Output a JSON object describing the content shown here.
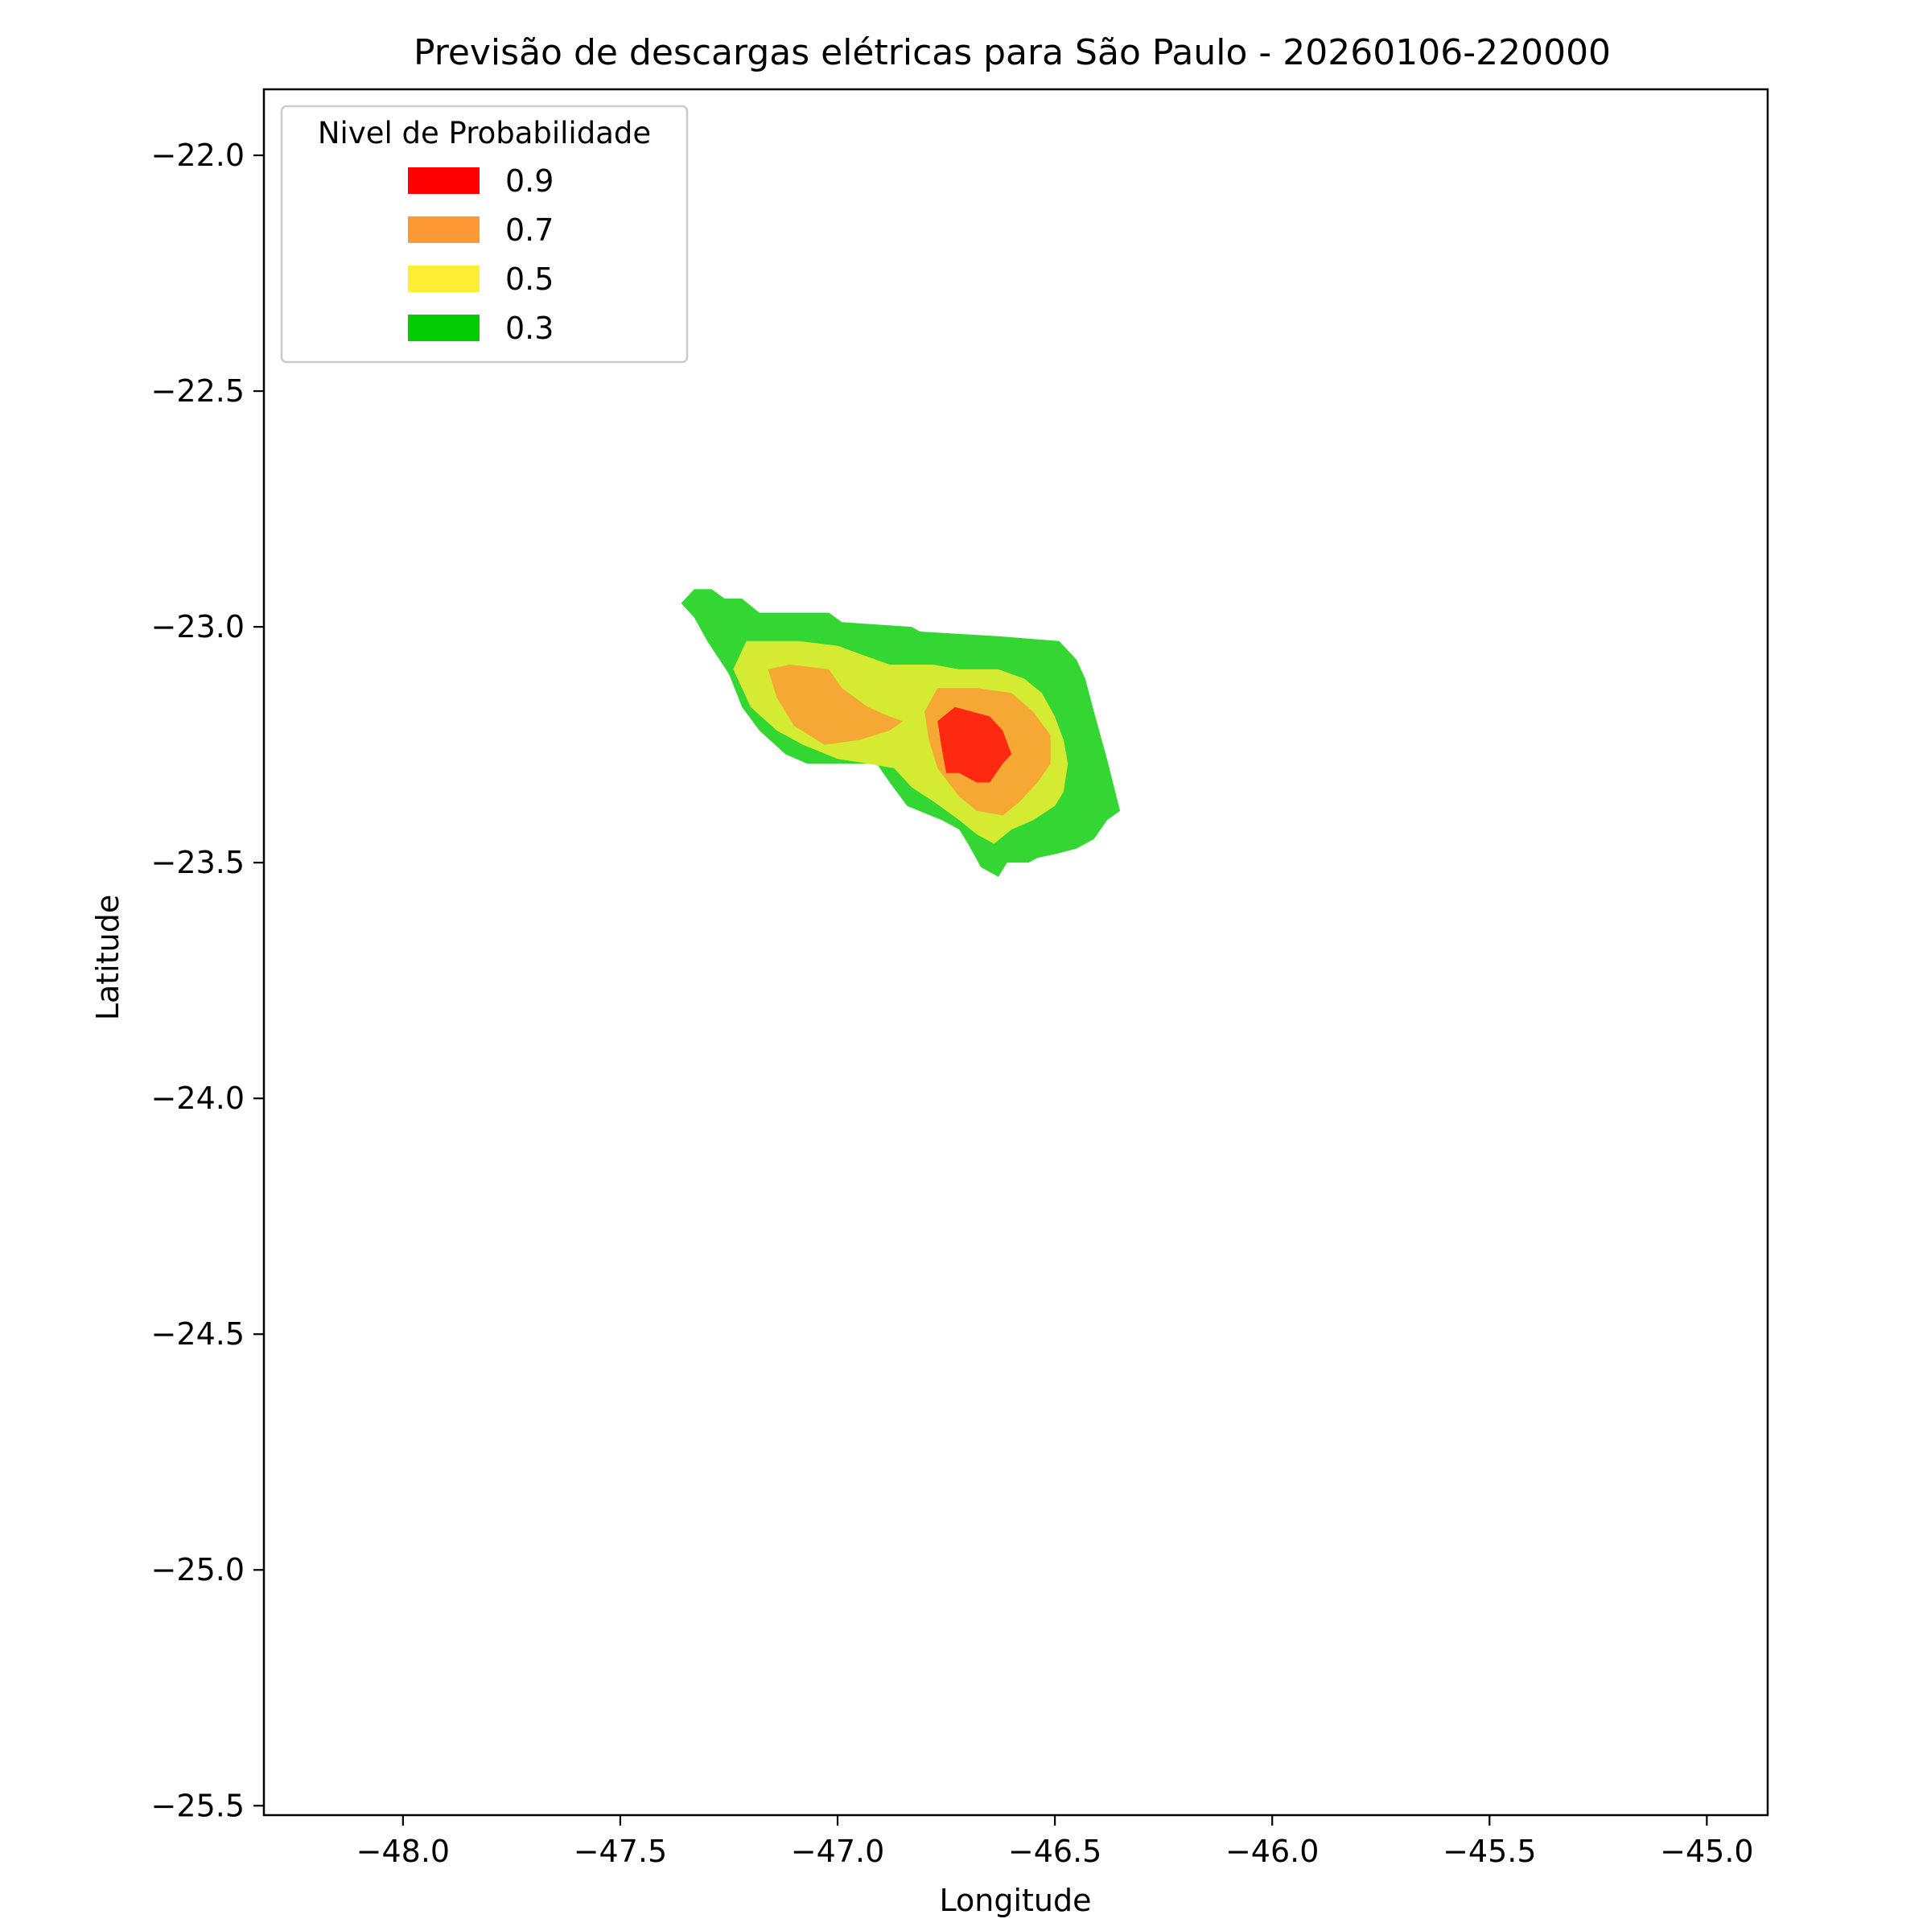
{
  "chart_data": {
    "type": "contourf",
    "title": "Previsão de descargas elétricas para São Paulo - 20260106-220000",
    "xlabel": "Longitude",
    "ylabel": "Latitude",
    "xlim": [
      -48.32,
      -44.86
    ],
    "ylim": [
      -25.52,
      -21.86
    ],
    "x_ticks": [
      {
        "value": -48.0,
        "label": "−48.0"
      },
      {
        "value": -47.5,
        "label": "−47.5"
      },
      {
        "value": -47.0,
        "label": "−47.0"
      },
      {
        "value": -46.5,
        "label": "−46.5"
      },
      {
        "value": -46.0,
        "label": "−46.0"
      },
      {
        "value": -45.5,
        "label": "−45.5"
      },
      {
        "value": -45.0,
        "label": "−45.0"
      }
    ],
    "y_ticks": [
      {
        "value": -22.0,
        "label": "−22.0"
      },
      {
        "value": -22.5,
        "label": "−22.5"
      },
      {
        "value": -23.0,
        "label": "−23.0"
      },
      {
        "value": -23.5,
        "label": "−23.5"
      },
      {
        "value": -24.0,
        "label": "−24.0"
      },
      {
        "value": -24.5,
        "label": "−24.5"
      },
      {
        "value": -25.0,
        "label": "−25.0"
      },
      {
        "value": -25.5,
        "label": "−25.5"
      }
    ],
    "grid": false,
    "legend": {
      "title": "Nivel de Probabilidade",
      "placement": "top-left",
      "entries": [
        {
          "label": "0.9",
          "color": "#ff0000"
        },
        {
          "label": "0.7",
          "color": "#ff9933"
        },
        {
          "label": "0.5",
          "color": "#ffee33"
        },
        {
          "label": "0.3",
          "color": "#00cc00"
        }
      ]
    },
    "contour_levels": [
      {
        "level": 0.3,
        "fill": "#33d633",
        "regions": [
          [
            [
              -47.36,
              -22.95
            ],
            [
              -47.33,
              -22.92
            ],
            [
              -47.29,
              -22.92
            ],
            [
              -47.26,
              -22.94
            ],
            [
              -47.22,
              -22.94
            ],
            [
              -47.18,
              -22.97
            ],
            [
              -47.02,
              -22.97
            ],
            [
              -46.99,
              -22.99
            ],
            [
              -46.83,
              -23.0
            ],
            [
              -46.81,
              -23.01
            ],
            [
              -46.63,
              -23.02
            ],
            [
              -46.49,
              -23.03
            ],
            [
              -46.45,
              -23.07
            ],
            [
              -46.43,
              -23.11
            ],
            [
              -46.41,
              -23.18
            ],
            [
              -46.38,
              -23.28
            ],
            [
              -46.35,
              -23.39
            ],
            [
              -46.38,
              -23.41
            ],
            [
              -46.41,
              -23.45
            ],
            [
              -46.45,
              -23.47
            ],
            [
              -46.49,
              -23.48
            ],
            [
              -46.54,
              -23.49
            ],
            [
              -46.56,
              -23.5
            ],
            [
              -46.61,
              -23.5
            ],
            [
              -46.63,
              -23.53
            ],
            [
              -46.67,
              -23.51
            ],
            [
              -46.7,
              -23.46
            ],
            [
              -46.72,
              -23.43
            ],
            [
              -46.76,
              -23.41
            ],
            [
              -46.84,
              -23.38
            ],
            [
              -46.88,
              -23.33
            ],
            [
              -46.91,
              -23.29
            ],
            [
              -47.0,
              -23.29
            ],
            [
              -47.07,
              -23.29
            ],
            [
              -47.12,
              -23.27
            ],
            [
              -47.18,
              -23.22
            ],
            [
              -47.22,
              -23.17
            ],
            [
              -47.25,
              -23.1
            ],
            [
              -47.3,
              -23.03
            ],
            [
              -47.33,
              -22.98
            ]
          ]
        ]
      },
      {
        "level": 0.5,
        "fill": "#d4ea33",
        "regions": [
          [
            [
              -47.24,
              -23.09
            ],
            [
              -47.21,
              -23.03
            ],
            [
              -47.09,
              -23.03
            ],
            [
              -47.0,
              -23.04
            ],
            [
              -46.88,
              -23.08
            ],
            [
              -46.78,
              -23.08
            ],
            [
              -46.72,
              -23.09
            ],
            [
              -46.63,
              -23.09
            ],
            [
              -46.57,
              -23.11
            ],
            [
              -46.53,
              -23.14
            ],
            [
              -46.5,
              -23.19
            ],
            [
              -46.48,
              -23.24
            ],
            [
              -46.47,
              -23.29
            ],
            [
              -46.48,
              -23.35
            ],
            [
              -46.5,
              -23.38
            ],
            [
              -46.55,
              -23.41
            ],
            [
              -46.6,
              -23.43
            ],
            [
              -46.64,
              -23.46
            ],
            [
              -46.68,
              -23.44
            ],
            [
              -46.72,
              -23.41
            ],
            [
              -46.78,
              -23.37
            ],
            [
              -46.83,
              -23.34
            ],
            [
              -46.87,
              -23.3
            ],
            [
              -46.93,
              -23.29
            ],
            [
              -47.0,
              -23.28
            ],
            [
              -47.08,
              -23.25
            ],
            [
              -47.14,
              -23.22
            ],
            [
              -47.2,
              -23.17
            ]
          ]
        ]
      },
      {
        "level": 0.7,
        "fill": "#f5a833",
        "regions": [
          [
            [
              -47.16,
              -23.09
            ],
            [
              -47.11,
              -23.08
            ],
            [
              -47.02,
              -23.09
            ],
            [
              -46.99,
              -23.13
            ],
            [
              -46.93,
              -23.17
            ],
            [
              -46.88,
              -23.19
            ],
            [
              -46.85,
              -23.2
            ],
            [
              -46.88,
              -23.22
            ],
            [
              -46.95,
              -23.24
            ],
            [
              -47.03,
              -23.25
            ],
            [
              -47.1,
              -23.21
            ],
            [
              -47.14,
              -23.15
            ]
          ],
          [
            [
              -46.8,
              -23.18
            ],
            [
              -46.77,
              -23.13
            ],
            [
              -46.68,
              -23.13
            ],
            [
              -46.6,
              -23.14
            ],
            [
              -46.55,
              -23.18
            ],
            [
              -46.51,
              -23.23
            ],
            [
              -46.51,
              -23.29
            ],
            [
              -46.54,
              -23.33
            ],
            [
              -46.58,
              -23.37
            ],
            [
              -46.62,
              -23.4
            ],
            [
              -46.68,
              -23.39
            ],
            [
              -46.72,
              -23.36
            ],
            [
              -46.77,
              -23.3
            ],
            [
              -46.79,
              -23.24
            ]
          ]
        ]
      },
      {
        "level": 0.9,
        "fill": "#ff2810",
        "regions": [
          [
            [
              -46.77,
              -23.2
            ],
            [
              -46.73,
              -23.17
            ],
            [
              -46.69,
              -23.18
            ],
            [
              -46.65,
              -23.19
            ],
            [
              -46.62,
              -23.22
            ],
            [
              -46.6,
              -23.27
            ],
            [
              -46.62,
              -23.29
            ],
            [
              -46.65,
              -23.33
            ],
            [
              -46.68,
              -23.33
            ],
            [
              -46.72,
              -23.31
            ],
            [
              -46.75,
              -23.31
            ],
            [
              -46.76,
              -23.26
            ]
          ]
        ]
      }
    ]
  }
}
